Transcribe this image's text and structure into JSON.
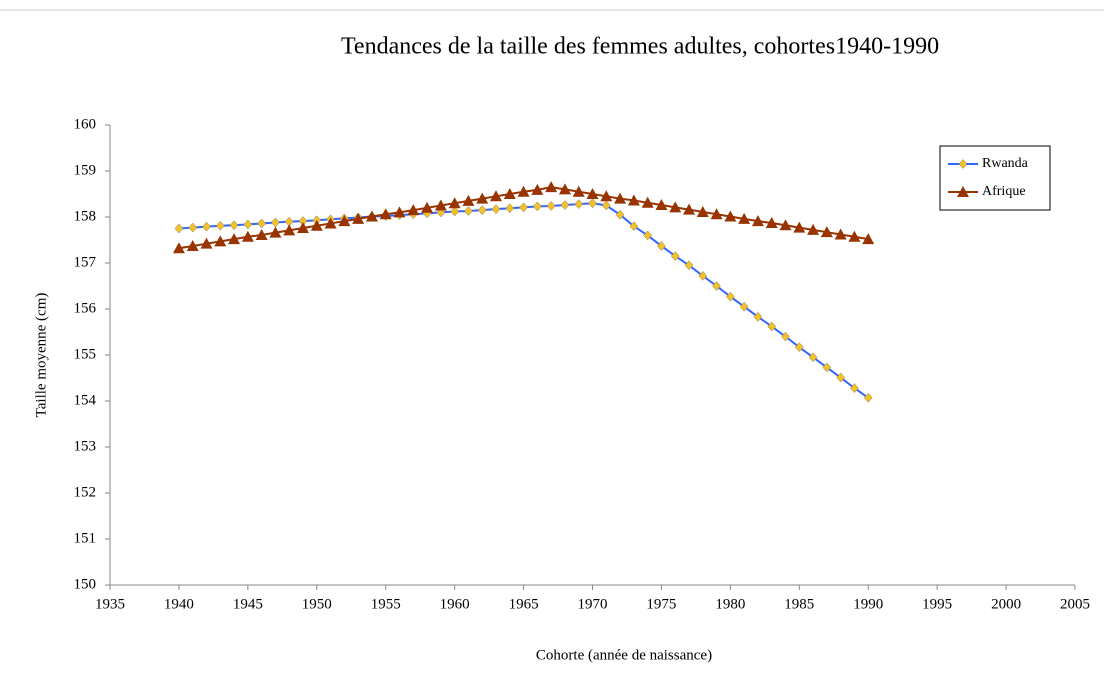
{
  "chart_data": {
    "type": "line",
    "title": "Tendances de la taille des femmes adultes, cohortes1940-1990",
    "x_label": "Cohorte (année de naissance)",
    "y_label": "Taille moyenne  (cm)",
    "x": [
      1940,
      1941,
      1942,
      1943,
      1944,
      1945,
      1946,
      1947,
      1948,
      1949,
      1950,
      1951,
      1952,
      1953,
      1954,
      1955,
      1956,
      1957,
      1958,
      1959,
      1960,
      1961,
      1962,
      1963,
      1964,
      1965,
      1966,
      1967,
      1968,
      1969,
      1970,
      1971,
      1972,
      1973,
      1974,
      1975,
      1976,
      1977,
      1978,
      1979,
      1980,
      1981,
      1982,
      1983,
      1984,
      1985,
      1986,
      1987,
      1988,
      1989,
      1990
    ],
    "series": [
      {
        "name": "Rwanda",
        "color": "#3366ff",
        "marker_color": "#f2c12e",
        "marker": "diamond",
        "values": [
          157.75,
          157.77,
          157.79,
          157.81,
          157.82,
          157.84,
          157.86,
          157.88,
          157.9,
          157.91,
          157.93,
          157.95,
          157.97,
          157.99,
          158.01,
          158.02,
          158.04,
          158.06,
          158.08,
          158.1,
          158.12,
          158.13,
          158.15,
          158.17,
          158.19,
          158.21,
          158.23,
          158.24,
          158.26,
          158.28,
          158.3,
          158.25,
          158.05,
          157.8,
          157.6,
          157.37,
          157.15,
          156.95,
          156.72,
          156.5,
          156.27,
          156.05,
          155.83,
          155.62,
          155.4,
          155.17,
          154.95,
          154.73,
          154.51,
          154.28,
          154.07
        ]
      },
      {
        "name": "Afrique",
        "color": "#993300",
        "marker_color": "#993300",
        "marker": "triangle",
        "values": [
          157.32,
          157.37,
          157.42,
          157.47,
          157.52,
          157.57,
          157.61,
          157.66,
          157.71,
          157.76,
          157.81,
          157.86,
          157.91,
          157.96,
          158.01,
          158.06,
          158.1,
          158.15,
          158.2,
          158.25,
          158.3,
          158.35,
          158.4,
          158.45,
          158.5,
          158.55,
          158.59,
          158.65,
          158.6,
          158.55,
          158.5,
          158.45,
          158.4,
          158.36,
          158.31,
          158.26,
          158.21,
          158.16,
          158.11,
          158.06,
          158.01,
          157.96,
          157.91,
          157.87,
          157.82,
          157.77,
          157.72,
          157.67,
          157.62,
          157.57,
          157.52
        ]
      }
    ],
    "xlim": [
      1935,
      2005
    ],
    "xticks": [
      1935,
      1940,
      1945,
      1950,
      1955,
      1960,
      1965,
      1970,
      1975,
      1980,
      1985,
      1990,
      1995,
      2000,
      2005
    ],
    "ylim": [
      150,
      160
    ],
    "yticks": [
      150,
      151,
      152,
      153,
      154,
      155,
      156,
      157,
      158,
      159,
      160
    ],
    "legend": "top-right"
  }
}
